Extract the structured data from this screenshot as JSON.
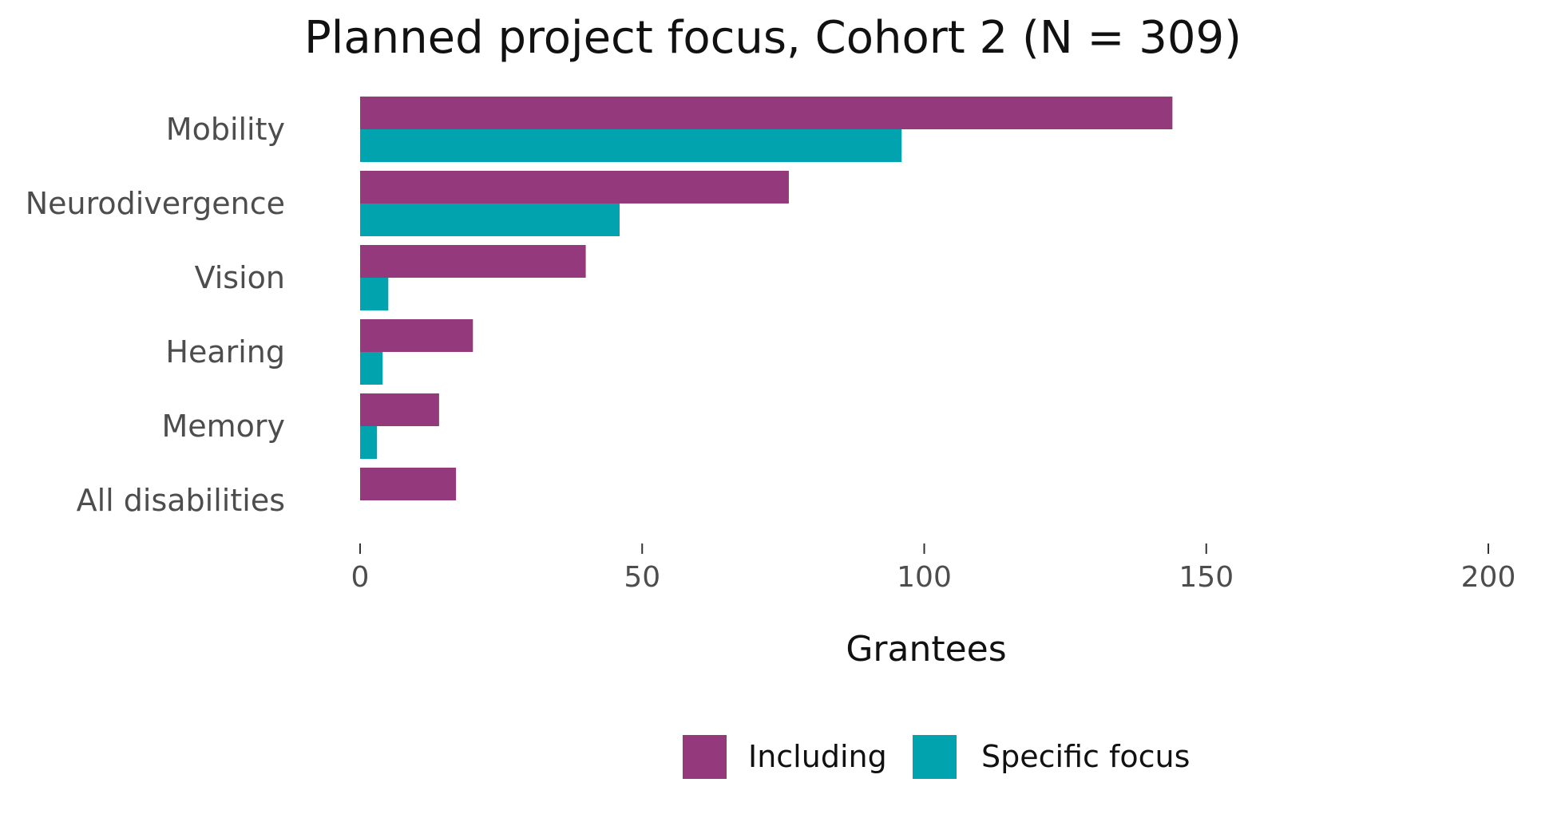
{
  "chart_data": {
    "type": "bar",
    "orientation": "horizontal",
    "title": "Planned project focus, Cohort 2 (N = 309)",
    "xlabel": "Grantees",
    "ylabel": "",
    "xlim": [
      0,
      200
    ],
    "xticks": [
      0,
      50,
      100,
      150,
      200
    ],
    "grid": false,
    "legend_position": "bottom",
    "categories": [
      "Mobility",
      "Neurodivergence",
      "Vision",
      "Hearing",
      "Memory",
      "All disabilities"
    ],
    "series": [
      {
        "name": "Including",
        "color": "#94397c",
        "values": [
          144,
          76,
          40,
          20,
          14,
          17
        ]
      },
      {
        "name": "Specific focus",
        "color": "#00a3ae",
        "values": [
          96,
          46,
          5,
          4,
          3,
          0
        ]
      }
    ]
  }
}
